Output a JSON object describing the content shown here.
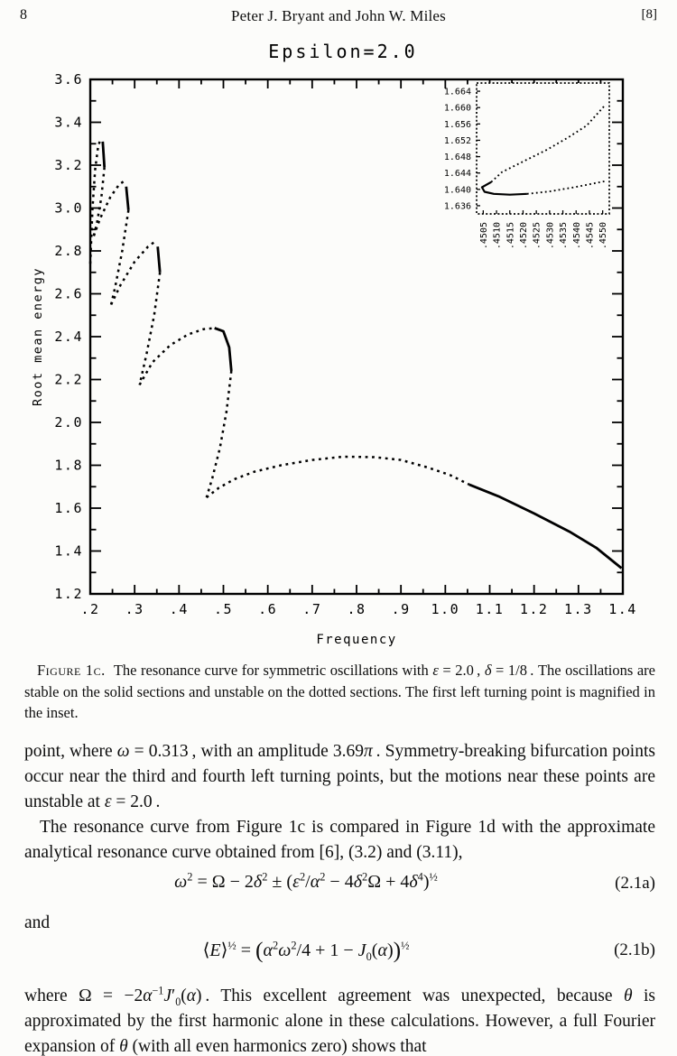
{
  "header": {
    "page_number": "8",
    "running_head": "Peter J. Bryant and John W. Miles",
    "bracket_number": "[8]"
  },
  "figure": {
    "title": "Epsilon=2.0",
    "xlabel": "Frequency",
    "ylabel": "Root mean energy"
  },
  "chart_data": {
    "type": "line",
    "title": "Epsilon=2.0",
    "xlabel": "Frequency",
    "ylabel": "Root mean energy",
    "xlim": [
      0.2,
      1.4
    ],
    "ylim": [
      1.2,
      3.6
    ],
    "x_major_ticks": [
      ".2",
      ".3",
      ".4",
      ".5",
      ".6",
      ".7",
      ".8",
      ".9",
      "1.0",
      "1.1",
      "1.2",
      "1.3",
      "1.4"
    ],
    "y_major_ticks": [
      "1.2",
      "1.4",
      "1.6",
      "1.8",
      "2.0",
      "2.2",
      "2.4",
      "2.6",
      "2.8",
      "3.0",
      "3.2",
      "3.4",
      "3.6"
    ],
    "x_minor_step": 0.05,
    "y_minor_step": 0.1,
    "line_meaning": {
      "solid": "stable oscillations",
      "dotted": "unstable oscillations"
    },
    "segments": [
      {
        "style": "dotted",
        "points": [
          [
            0.2,
            2.74
          ],
          [
            0.205,
            3.0
          ],
          [
            0.211,
            3.18
          ],
          [
            0.218,
            3.29
          ],
          [
            0.224,
            3.325
          ]
        ]
      },
      {
        "style": "solid",
        "points": [
          [
            0.228,
            3.31
          ],
          [
            0.232,
            3.19
          ]
        ]
      },
      {
        "style": "dotted",
        "points": [
          [
            0.232,
            3.19
          ],
          [
            0.225,
            3.05
          ],
          [
            0.215,
            2.93
          ],
          [
            0.208,
            2.87
          ]
        ]
      },
      {
        "style": "dotted",
        "points": [
          [
            0.208,
            2.87
          ],
          [
            0.222,
            2.95
          ],
          [
            0.245,
            3.05
          ],
          [
            0.265,
            3.11
          ],
          [
            0.276,
            3.125
          ]
        ]
      },
      {
        "style": "solid",
        "points": [
          [
            0.281,
            3.1
          ],
          [
            0.286,
            2.99
          ]
        ]
      },
      {
        "style": "dotted",
        "points": [
          [
            0.286,
            2.99
          ],
          [
            0.272,
            2.8
          ],
          [
            0.256,
            2.63
          ],
          [
            0.247,
            2.55
          ]
        ]
      },
      {
        "style": "dotted",
        "points": [
          [
            0.247,
            2.55
          ],
          [
            0.268,
            2.64
          ],
          [
            0.3,
            2.75
          ],
          [
            0.33,
            2.82
          ],
          [
            0.347,
            2.845
          ]
        ]
      },
      {
        "style": "solid",
        "points": [
          [
            0.352,
            2.82
          ],
          [
            0.357,
            2.7
          ]
        ]
      },
      {
        "style": "dotted",
        "points": [
          [
            0.357,
            2.7
          ],
          [
            0.344,
            2.5
          ],
          [
            0.327,
            2.32
          ],
          [
            0.314,
            2.2
          ],
          [
            0.311,
            2.175
          ]
        ]
      },
      {
        "style": "dotted",
        "points": [
          [
            0.311,
            2.175
          ],
          [
            0.34,
            2.28
          ],
          [
            0.38,
            2.36
          ],
          [
            0.42,
            2.41
          ],
          [
            0.455,
            2.435
          ],
          [
            0.48,
            2.44
          ]
        ]
      },
      {
        "style": "solid",
        "points": [
          [
            0.48,
            2.44
          ],
          [
            0.5,
            2.425
          ],
          [
            0.513,
            2.35
          ],
          [
            0.518,
            2.24
          ]
        ]
      },
      {
        "style": "dotted",
        "points": [
          [
            0.518,
            2.24
          ],
          [
            0.507,
            2.05
          ],
          [
            0.492,
            1.88
          ],
          [
            0.475,
            1.74
          ],
          [
            0.462,
            1.65
          ]
        ]
      },
      {
        "style": "dotted",
        "points": [
          [
            0.462,
            1.65
          ],
          [
            0.49,
            1.695
          ],
          [
            0.525,
            1.735
          ],
          [
            0.57,
            1.77
          ],
          [
            0.63,
            1.8
          ],
          [
            0.7,
            1.825
          ],
          [
            0.77,
            1.84
          ],
          [
            0.84,
            1.838
          ],
          [
            0.9,
            1.825
          ],
          [
            0.96,
            1.79
          ],
          [
            1.01,
            1.755
          ],
          [
            1.054,
            1.71
          ]
        ]
      },
      {
        "style": "solid",
        "points": [
          [
            1.054,
            1.71
          ],
          [
            1.12,
            1.655
          ],
          [
            1.2,
            1.575
          ],
          [
            1.28,
            1.49
          ],
          [
            1.34,
            1.415
          ],
          [
            1.397,
            1.32
          ]
        ]
      }
    ],
    "inset": {
      "description": "magnified first left turning point",
      "xlim": [
        0.45025,
        0.45525
      ],
      "ylim": [
        1.634,
        1.666
      ],
      "x_ticks": [
        ".4505",
        ".4510",
        ".4515",
        ".4520",
        ".4525",
        ".4530",
        ".4535",
        ".4540",
        ".4545",
        ".4550"
      ],
      "y_ticks": [
        "1.636",
        "1.640",
        "1.644",
        "1.648",
        "1.652",
        "1.656",
        "1.660",
        "1.664"
      ],
      "segments": [
        {
          "style": "dotted",
          "points": [
            [
              0.4508,
              1.6418
            ],
            [
              0.4512,
              1.6442
            ],
            [
              0.452,
              1.6468
            ],
            [
              0.4529,
              1.6497
            ],
            [
              0.4537,
              1.6527
            ],
            [
              0.4544,
              1.6556
            ],
            [
              0.45508,
              1.6605
            ]
          ]
        },
        {
          "style": "solid",
          "points": [
            [
              0.4508,
              1.6418
            ],
            [
              0.45045,
              1.6405
            ],
            [
              0.45055,
              1.6394
            ],
            [
              0.4509,
              1.6389
            ],
            [
              0.4515,
              1.6387
            ],
            [
              0.45215,
              1.6389
            ]
          ]
        },
        {
          "style": "dotted",
          "points": [
            [
              0.45215,
              1.6389
            ],
            [
              0.453,
              1.6395
            ],
            [
              0.454,
              1.6406
            ],
            [
              0.45508,
              1.642
            ]
          ]
        }
      ]
    }
  },
  "caption": {
    "label": "Figure 1c.",
    "html": "&nbsp;&nbsp;The resonance curve for symmetric oscillations with <i>ε</i> = 2.0&#8201;, <i>δ</i> = 1/8&#8201;. The oscillations are stable on the solid sections and unstable on the dotted sections. The first left turning point is magnified in the inset."
  },
  "body": {
    "p1_html": "point, where <i>ω</i> = 0.313&#8201;, with an amplitude 3.69<i>π</i>&#8201;. Symmetry-breaking bifurcation points occur near the third and fourth left turning points, but the motions near these points are unstable at <i>ε</i> = 2.0&#8201;.",
    "p2_html": "The resonance curve from Figure 1c is compared in Figure 1d with the approximate analytical resonance curve obtained from [6], (3.2) and (3.11),",
    "eq_a_html": "<i>ω</i><sup>2</sup> = Ω − 2<i>δ</i><sup>2</sup> ± (<i>ε</i><sup>2</sup>/<i>α</i><sup>2</sup> − 4<i>δ</i><sup>2</sup>Ω + 4<i>δ</i><sup>4</sup>)<sup>½</sup>",
    "eq_a_label": "(2.1a)",
    "and_word": "and",
    "eq_b_html": "⟨<i>E</i>⟩<sup>½</sup> = <span class=\"lp\">(</span><i>α</i><sup>2</sup><i>ω</i><sup>2</sup>/4 + 1 − <i>J</i><sub>0</sub>(<i>α</i>)<span class=\"lp\">)</span><sup>½</sup>",
    "eq_b_label": "(2.1b)",
    "p3_html": "where Ω = −2<i>α</i><sup>−1</sup><i>J</i>′<sub>0</sub>(<i>α</i>)&#8201;. This excellent agreement was unexpected, because <i>θ</i> is approximated by the first harmonic alone in these calculations. However, a full Fourier expansion of <i>θ</i> (with all even harmonics zero) shows that"
  }
}
